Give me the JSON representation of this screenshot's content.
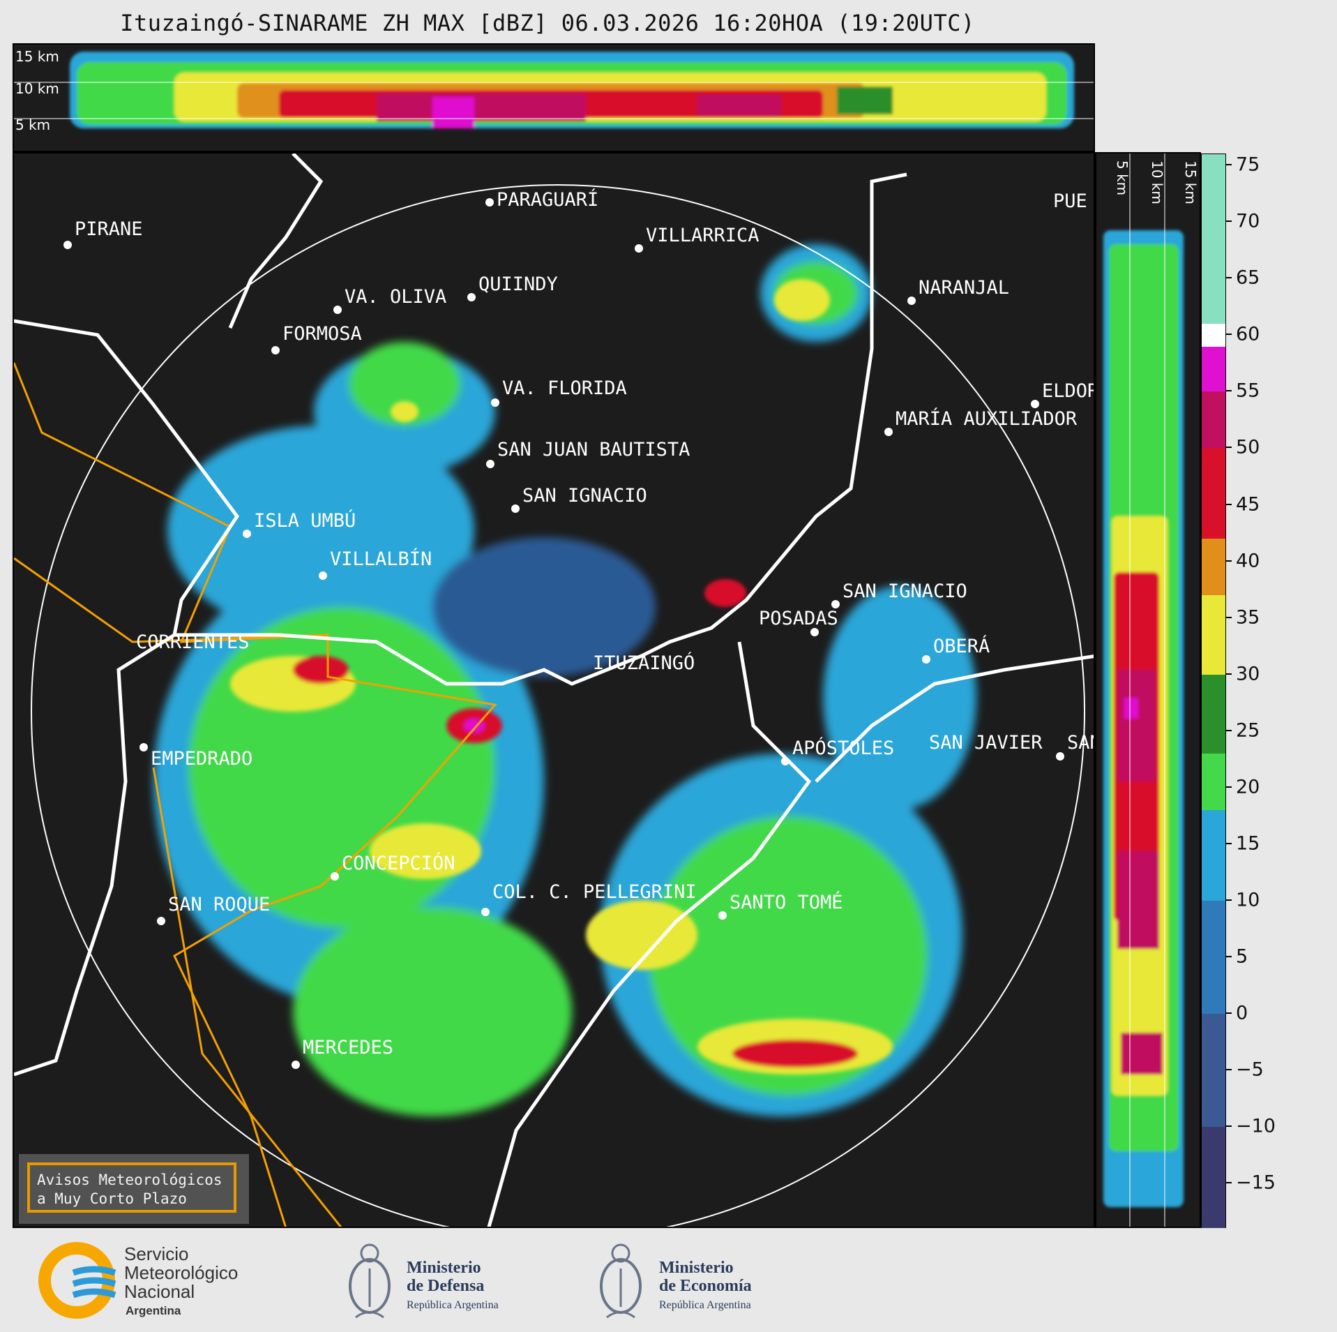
{
  "title": "Ituzaingó-SINARAME ZH MAX [dBZ] 06.03.2026 16:20HOA (19:20UTC)",
  "top_strip": {
    "height_labels": [
      "15 km",
      "10 km",
      "5 km"
    ]
  },
  "right_strip": {
    "height_labels": [
      "5 km",
      "10 km",
      "15 km"
    ]
  },
  "cities": [
    {
      "name": "PARAGUARÍ"
    },
    {
      "name": "PIRANE"
    },
    {
      "name": "VILLARRICA"
    },
    {
      "name": "QUIINDY"
    },
    {
      "name": "VA. OLIVA"
    },
    {
      "name": "NARANJAL"
    },
    {
      "name": "FORMOSA"
    },
    {
      "name": "VA. FLORIDA"
    },
    {
      "name": "ELDOR"
    },
    {
      "name": "MARÍA AUXILIADOR"
    },
    {
      "name": "SAN JUAN BAUTISTA"
    },
    {
      "name": "SAN IGNACIO"
    },
    {
      "name": "ISLA UMBÚ"
    },
    {
      "name": "VILLALBÍN"
    },
    {
      "name": "SAN IGNACIO"
    },
    {
      "name": "POSADAS"
    },
    {
      "name": "CORRIENTES"
    },
    {
      "name": "ITUZAINGÓ"
    },
    {
      "name": "OBERÁ"
    },
    {
      "name": "EMPEDRADO"
    },
    {
      "name": "APÓSTOLES"
    },
    {
      "name": "SAN JAVIER"
    },
    {
      "name": "SAN"
    },
    {
      "name": "CONCEPCIÓN"
    },
    {
      "name": "COL. C. PELLEGRINI"
    },
    {
      "name": "SANTO TOMÉ"
    },
    {
      "name": "SAN ROQUE"
    },
    {
      "name": "MERCEDES"
    },
    {
      "name": "PUE"
    }
  ],
  "colorbar": {
    "unit": "dBZ",
    "range": [
      -19,
      76
    ],
    "ticks": [
      "75",
      "70",
      "65",
      "60",
      "55",
      "50",
      "45",
      "40",
      "35",
      "30",
      "25",
      "20",
      "15",
      "10",
      "5",
      "0",
      "−5",
      "−10",
      "−15"
    ],
    "stops": [
      {
        "from": -19,
        "to": -10,
        "color": "#3a3a6e"
      },
      {
        "from": -10,
        "to": 0,
        "color": "#3b5a94"
      },
      {
        "from": 0,
        "to": 10,
        "color": "#2f7ab8"
      },
      {
        "from": 10,
        "to": 18,
        "color": "#2aa6d8"
      },
      {
        "from": 18,
        "to": 23,
        "color": "#43d94a"
      },
      {
        "from": 23,
        "to": 30,
        "color": "#2b8f2b"
      },
      {
        "from": 30,
        "to": 37,
        "color": "#e8e838"
      },
      {
        "from": 37,
        "to": 42,
        "color": "#e0901a"
      },
      {
        "from": 42,
        "to": 50,
        "color": "#d8102a"
      },
      {
        "from": 50,
        "to": 55,
        "color": "#c01060"
      },
      {
        "from": 55,
        "to": 59,
        "color": "#e010d0"
      },
      {
        "from": 59,
        "to": 61,
        "color": "#ffffff"
      },
      {
        "from": 61,
        "to": 76,
        "color": "#88e0c0"
      }
    ]
  },
  "warning_box": {
    "line1": "Avisos Meteorológicos",
    "line2": "a Muy Corto Plazo"
  },
  "footer": {
    "smn": {
      "line1": "Servicio",
      "line2": "Meteorológico",
      "line3": "Nacional",
      "line4": "Argentina"
    },
    "defensa": {
      "line1": "Ministerio",
      "line2": "de Defensa",
      "sub": "República Argentina"
    },
    "economia": {
      "line1": "Ministerio",
      "line2": "de Economía",
      "sub": "República Argentina"
    }
  }
}
